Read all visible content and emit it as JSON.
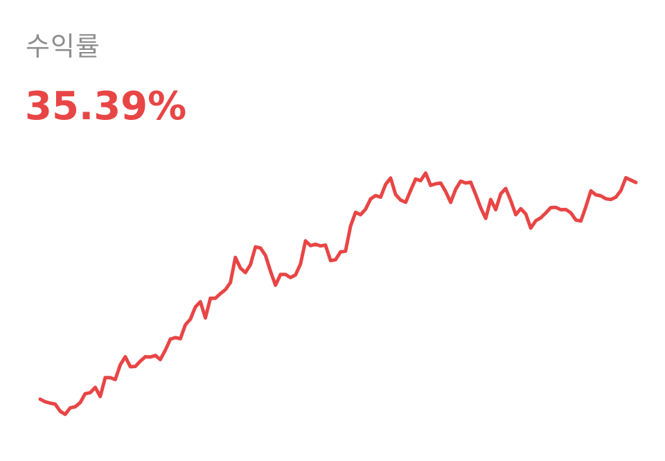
{
  "header": {
    "label": "수익률",
    "value": "35.39%"
  },
  "colors": {
    "accent": "#e84545",
    "label": "#8e8e8e",
    "background": "#ffffff"
  },
  "chart_data": {
    "type": "line",
    "title": "",
    "xlabel": "",
    "ylabel": "",
    "grid": false,
    "legend": "none",
    "ylim": [
      0,
      100
    ],
    "series": [
      {
        "values": [
          10.1,
          9.1,
          8.6,
          8.2,
          5.5,
          4.3,
          6.8,
          7.2,
          8.8,
          12.2,
          12.6,
          14.6,
          11.1,
          18.3,
          18.3,
          17.6,
          23.2,
          26.3,
          22.5,
          22.6,
          24.6,
          26.3,
          26.2,
          26.8,
          25.2,
          28.8,
          33.0,
          33.6,
          33.2,
          38.5,
          40.6,
          45.3,
          47.3,
          41.1,
          48.6,
          48.6,
          50.4,
          51.9,
          54.6,
          64.2,
          60.1,
          58.4,
          61.4,
          68.2,
          67.8,
          65.0,
          59.0,
          53.6,
          57.7,
          57.7,
          56.5,
          57.5,
          61.7,
          70.5,
          68.7,
          69.2,
          68.6,
          68.9,
          63.0,
          63.3,
          66.3,
          66.6,
          76.2,
          81.4,
          80.5,
          82.6,
          86.5,
          87.8,
          87.2,
          92.1,
          94.5,
          88.2,
          86.1,
          85.2,
          89.8,
          94.1,
          93.5,
          96.4,
          91.7,
          92.3,
          92.6,
          89.3,
          85.2,
          90.2,
          93.3,
          92.6,
          92.9,
          88.2,
          83.1,
          79.1,
          86.3,
          82.4,
          88.5,
          90.5,
          85.9,
          80.5,
          82.8,
          80.8,
          75.4,
          78.2,
          79.3,
          81.2,
          83.2,
          83.3,
          82.4,
          82.5,
          81.2,
          78.5,
          78.1,
          83.5,
          89.6,
          88.1,
          87.7,
          86.6,
          86.3,
          87.2,
          89.7,
          94.6,
          93.7,
          92.8
        ]
      }
    ]
  }
}
